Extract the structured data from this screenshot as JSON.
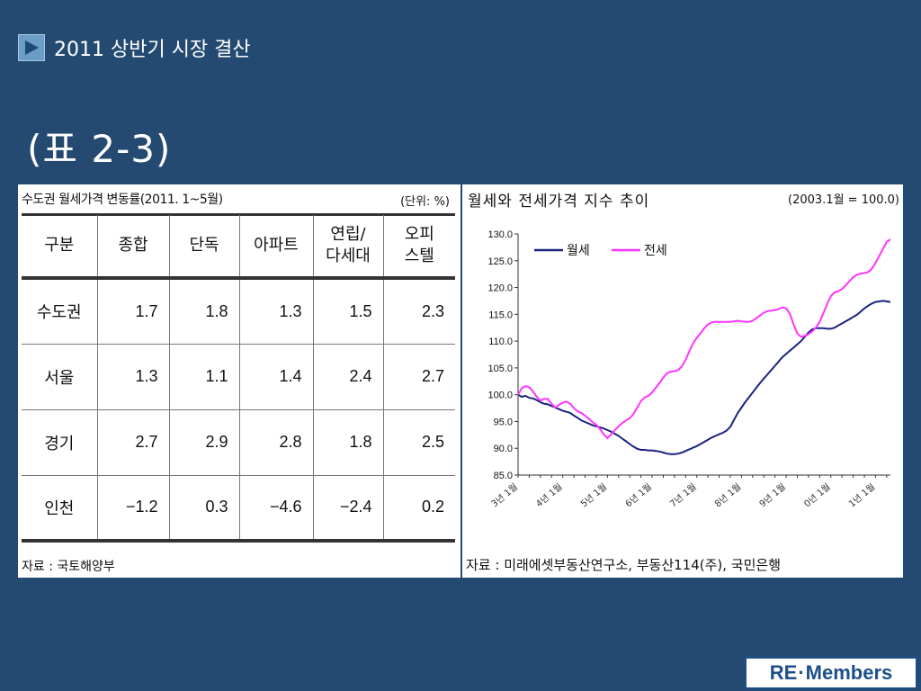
{
  "header": {
    "title": "2011 상반기 시장 결산",
    "icon": "play-icon"
  },
  "slide_title": "(표 2-3)",
  "table": {
    "caption": "수도권 월세가격 변동률(2011. 1~5월)",
    "unit": "(단위: %)",
    "headers": [
      [
        "구분"
      ],
      [
        "종합"
      ],
      [
        "단독"
      ],
      [
        "아파트"
      ],
      [
        "연립/",
        "다세대"
      ],
      [
        "오피",
        "스텔"
      ]
    ],
    "rows": [
      [
        "수도권",
        "1.7",
        "1.8",
        "1.3",
        "1.5",
        "2.3"
      ],
      [
        "서울",
        "1.3",
        "1.1",
        "1.4",
        "2.4",
        "2.7"
      ],
      [
        "경기",
        "2.7",
        "2.9",
        "2.8",
        "1.8",
        "2.5"
      ],
      [
        "인천",
        "−1.2",
        "0.3",
        "−4.6",
        "−2.4",
        "0.2"
      ]
    ],
    "source": "자료 : 국토해양부"
  },
  "chart": {
    "title": "월세와 전세가격 지수 추이",
    "base_note": "(2003.1월 = 100.0)",
    "source": "자료 : 미래에셋부동산연구소, 부동산114(주), 국민은행"
  },
  "chart_data": {
    "type": "line",
    "ylim": [
      85.0,
      130.0
    ],
    "yticks": [
      "130.0",
      "125.0",
      "120.0",
      "115.0",
      "110.0",
      "105.0",
      "100.0",
      "95.0",
      "90.0",
      "85.0"
    ],
    "x_tick_labels": [
      "3년 1월",
      "4년 1월",
      "5년 1월",
      "6년 1월",
      "7년 1월",
      "8년 1월",
      "9년 1월",
      "0년 1월",
      "1년 1월"
    ],
    "x_start": "2003-01",
    "legend_position": "top-left",
    "series": [
      {
        "name": "월세",
        "color": "#1a237e",
        "values": [
          100.0,
          99.6,
          99.8,
          99.4,
          99.3,
          99.0,
          98.6,
          98.3,
          98.2,
          97.9,
          97.6,
          97.3,
          97.0,
          96.8,
          96.6,
          96.1,
          95.7,
          95.2,
          94.9,
          94.6,
          94.3,
          94.1,
          93.9,
          93.7,
          93.4,
          93.1,
          92.7,
          92.3,
          91.8,
          91.3,
          90.8,
          90.3,
          89.9,
          89.7,
          89.7,
          89.6,
          89.6,
          89.5,
          89.4,
          89.2,
          89.0,
          88.9,
          88.9,
          89.0,
          89.2,
          89.5,
          89.8,
          90.1,
          90.4,
          90.8,
          91.2,
          91.6,
          92.0,
          92.3,
          92.6,
          92.9,
          93.3,
          94.0,
          95.3,
          96.6,
          97.6,
          98.6,
          99.5,
          100.4,
          101.3,
          102.2,
          103.0,
          103.8,
          104.6,
          105.4,
          106.2,
          107.0,
          107.6,
          108.2,
          108.8,
          109.4,
          110.0,
          110.8,
          111.6,
          112.2,
          112.4,
          112.4,
          112.4,
          112.3,
          112.3,
          112.5,
          112.9,
          113.3,
          113.7,
          114.1,
          114.5,
          114.9,
          115.5,
          116.1,
          116.6,
          117.0,
          117.3,
          117.4,
          117.5,
          117.4,
          117.3
        ]
      },
      {
        "name": "전세",
        "color": "#ff33ff",
        "values": [
          100.0,
          101.2,
          101.6,
          101.4,
          100.6,
          99.6,
          98.9,
          99.2,
          99.2,
          98.3,
          97.6,
          98.1,
          98.5,
          98.7,
          98.3,
          97.5,
          96.9,
          96.6,
          96.1,
          95.5,
          94.9,
          94.4,
          93.6,
          92.6,
          91.9,
          92.6,
          93.4,
          94.1,
          94.7,
          95.2,
          95.6,
          96.4,
          97.6,
          98.8,
          99.5,
          99.8,
          100.4,
          101.3,
          102.2,
          103.2,
          104.0,
          104.3,
          104.4,
          104.6,
          105.3,
          106.5,
          108.1,
          109.6,
          110.6,
          111.5,
          112.4,
          113.1,
          113.5,
          113.6,
          113.6,
          113.6,
          113.6,
          113.6,
          113.7,
          113.8,
          113.7,
          113.6,
          113.6,
          113.8,
          114.3,
          114.8,
          115.3,
          115.6,
          115.7,
          115.8,
          116.0,
          116.3,
          116.1,
          115.1,
          113.1,
          111.4,
          110.8,
          111.0,
          111.3,
          111.8,
          112.5,
          113.6,
          115.2,
          116.9,
          118.4,
          119.1,
          119.3,
          119.7,
          120.4,
          121.2,
          121.9,
          122.4,
          122.6,
          122.7,
          122.9,
          123.5,
          124.6,
          125.9,
          127.2,
          128.5,
          129.0
        ]
      }
    ]
  },
  "logo": {
    "left": "RE",
    "dot": "·",
    "right": "Members"
  }
}
